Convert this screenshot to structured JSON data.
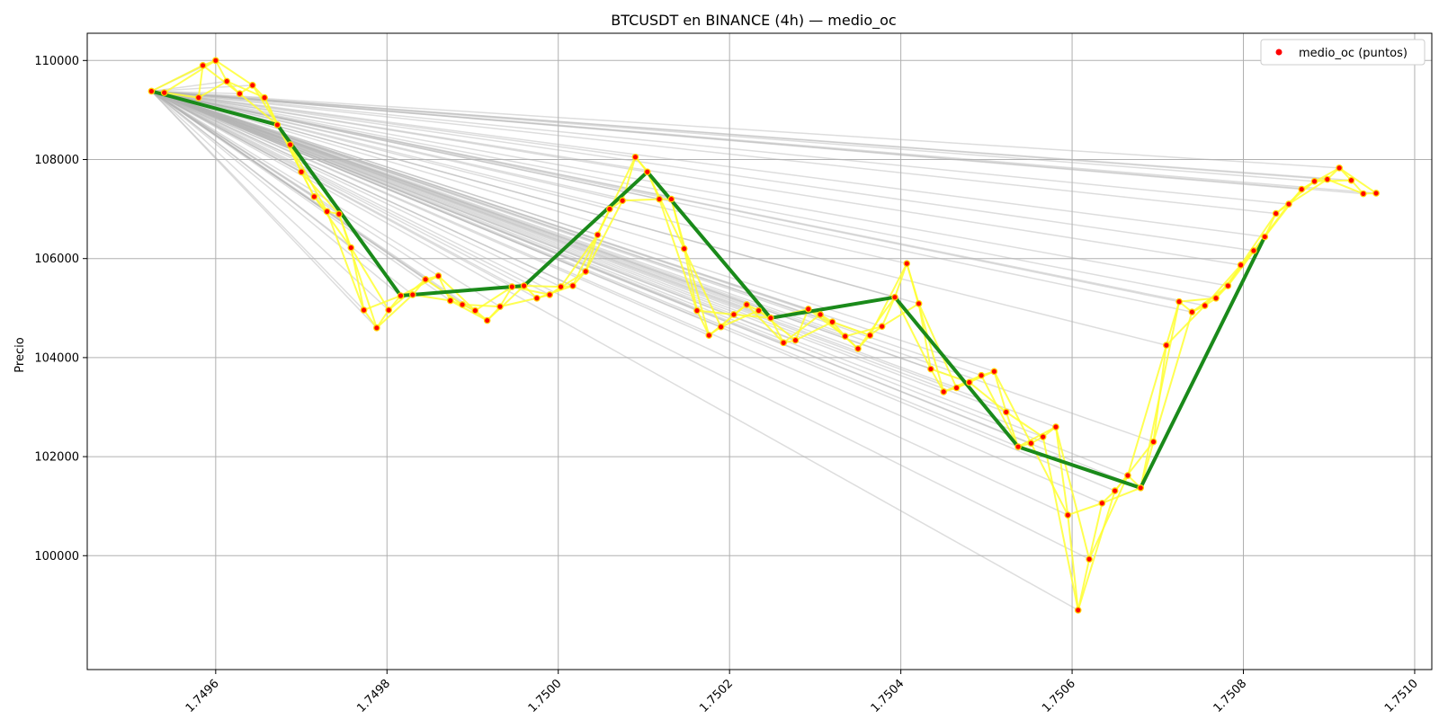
{
  "chart_data": {
    "type": "line",
    "title": "BTCUSDT en BINANCE (4h) — medio_oc",
    "xlabel": "",
    "ylabel": "Precio",
    "xlim": [
      1.74945,
      1.75102
    ],
    "ylim": [
      97700,
      110550
    ],
    "grid": true,
    "legend": {
      "position": "top-right",
      "entries": [
        "medio_oc (puntos)"
      ]
    },
    "x_ticks": [
      1.7496,
      1.7498,
      1.75,
      1.7502,
      1.7504,
      1.7506,
      1.7508,
      1.751
    ],
    "x_tick_labels": [
      "1.7496",
      "1.7498",
      "1.7500",
      "1.7502",
      "1.7504",
      "1.7506",
      "1.7508",
      "1.7510"
    ],
    "y_ticks": [
      100000,
      102000,
      104000,
      106000,
      108000,
      110000
    ],
    "y_tick_labels": [
      "100000",
      "102000",
      "104000",
      "106000",
      "108000",
      "110000"
    ],
    "colors": {
      "points": "#ff0000",
      "point_edge": "#ffd400",
      "path": "#ffff33",
      "trend": "#1a8a1a",
      "connectors": "#b4b4b4",
      "grid": "#b0b0b0"
    },
    "points": [
      {
        "x": 1.749525,
        "y": 109380
      },
      {
        "x": 1.74954,
        "y": 109350
      },
      {
        "x": 1.74958,
        "y": 109250
      },
      {
        "x": 1.749585,
        "y": 109900
      },
      {
        "x": 1.7496,
        "y": 110000
      },
      {
        "x": 1.749613,
        "y": 109580
      },
      {
        "x": 1.749628,
        "y": 109330
      },
      {
        "x": 1.749643,
        "y": 109500
      },
      {
        "x": 1.749657,
        "y": 109250
      },
      {
        "x": 1.749672,
        "y": 108700
      },
      {
        "x": 1.749687,
        "y": 108300
      },
      {
        "x": 1.7497,
        "y": 107750
      },
      {
        "x": 1.749715,
        "y": 107250
      },
      {
        "x": 1.74973,
        "y": 106950
      },
      {
        "x": 1.749744,
        "y": 106900
      },
      {
        "x": 1.749758,
        "y": 106220
      },
      {
        "x": 1.749773,
        "y": 104960
      },
      {
        "x": 1.749788,
        "y": 104600
      },
      {
        "x": 1.749802,
        "y": 104960
      },
      {
        "x": 1.749816,
        "y": 105250
      },
      {
        "x": 1.74983,
        "y": 105270
      },
      {
        "x": 1.749845,
        "y": 105580
      },
      {
        "x": 1.74986,
        "y": 105650
      },
      {
        "x": 1.749874,
        "y": 105150
      },
      {
        "x": 1.749888,
        "y": 105070
      },
      {
        "x": 1.749903,
        "y": 104950
      },
      {
        "x": 1.749917,
        "y": 104750
      },
      {
        "x": 1.749932,
        "y": 105030
      },
      {
        "x": 1.749946,
        "y": 105430
      },
      {
        "x": 1.74996,
        "y": 105450
      },
      {
        "x": 1.749975,
        "y": 105200
      },
      {
        "x": 1.74999,
        "y": 105270
      },
      {
        "x": 1.750003,
        "y": 105430
      },
      {
        "x": 1.750017,
        "y": 105450
      },
      {
        "x": 1.750032,
        "y": 105740
      },
      {
        "x": 1.750046,
        "y": 106480
      },
      {
        "x": 1.75006,
        "y": 107000
      },
      {
        "x": 1.750075,
        "y": 107170
      },
      {
        "x": 1.75009,
        "y": 108050
      },
      {
        "x": 1.750104,
        "y": 107750
      },
      {
        "x": 1.750118,
        "y": 107200
      },
      {
        "x": 1.750132,
        "y": 107200
      },
      {
        "x": 1.750147,
        "y": 106200
      },
      {
        "x": 1.750162,
        "y": 104950
      },
      {
        "x": 1.750176,
        "y": 104450
      },
      {
        "x": 1.75019,
        "y": 104620
      },
      {
        "x": 1.750205,
        "y": 104870
      },
      {
        "x": 1.75022,
        "y": 105070
      },
      {
        "x": 1.750234,
        "y": 104950
      },
      {
        "x": 1.750248,
        "y": 104800
      },
      {
        "x": 1.750263,
        "y": 104300
      },
      {
        "x": 1.750277,
        "y": 104350
      },
      {
        "x": 1.750292,
        "y": 104980
      },
      {
        "x": 1.750306,
        "y": 104870
      },
      {
        "x": 1.75032,
        "y": 104720
      },
      {
        "x": 1.750335,
        "y": 104430
      },
      {
        "x": 1.75035,
        "y": 104180
      },
      {
        "x": 1.750364,
        "y": 104450
      },
      {
        "x": 1.750378,
        "y": 104630
      },
      {
        "x": 1.750393,
        "y": 105220
      },
      {
        "x": 1.750407,
        "y": 105900
      },
      {
        "x": 1.750421,
        "y": 105090
      },
      {
        "x": 1.750435,
        "y": 103770
      },
      {
        "x": 1.75045,
        "y": 103310
      },
      {
        "x": 1.750465,
        "y": 103390
      },
      {
        "x": 1.75048,
        "y": 103500
      },
      {
        "x": 1.750494,
        "y": 103640
      },
      {
        "x": 1.750509,
        "y": 103720
      },
      {
        "x": 1.750523,
        "y": 102900
      },
      {
        "x": 1.750537,
        "y": 102200
      },
      {
        "x": 1.750552,
        "y": 102270
      },
      {
        "x": 1.750566,
        "y": 102400
      },
      {
        "x": 1.750581,
        "y": 102600
      },
      {
        "x": 1.750595,
        "y": 100820
      },
      {
        "x": 1.750607,
        "y": 98900
      },
      {
        "x": 1.75062,
        "y": 99930
      },
      {
        "x": 1.750635,
        "y": 101060
      },
      {
        "x": 1.75065,
        "y": 101310
      },
      {
        "x": 1.750665,
        "y": 101620
      },
      {
        "x": 1.75068,
        "y": 101370
      },
      {
        "x": 1.750695,
        "y": 102300
      },
      {
        "x": 1.75071,
        "y": 104250
      },
      {
        "x": 1.750725,
        "y": 105130
      },
      {
        "x": 1.75074,
        "y": 104920
      },
      {
        "x": 1.750755,
        "y": 105050
      },
      {
        "x": 1.750768,
        "y": 105200
      },
      {
        "x": 1.750782,
        "y": 105450
      },
      {
        "x": 1.750797,
        "y": 105870
      },
      {
        "x": 1.750812,
        "y": 106160
      },
      {
        "x": 1.750825,
        "y": 106440
      },
      {
        "x": 1.750838,
        "y": 106910
      },
      {
        "x": 1.750853,
        "y": 107100
      },
      {
        "x": 1.750868,
        "y": 107400
      },
      {
        "x": 1.750883,
        "y": 107560
      },
      {
        "x": 1.750898,
        "y": 107600
      },
      {
        "x": 1.750912,
        "y": 107830
      },
      {
        "x": 1.750926,
        "y": 107580
      },
      {
        "x": 1.75094,
        "y": 107310
      },
      {
        "x": 1.750955,
        "y": 107320
      }
    ],
    "series": [
      {
        "name": "",
        "role": "trend",
        "color": "#1a8a1a",
        "x": [
          1.749525,
          1.749672,
          1.749816,
          1.74996,
          1.750104,
          1.750248,
          1.750393,
          1.750537,
          1.75068,
          1.750825
        ],
        "y": [
          109380,
          108700,
          105250,
          105450,
          107750,
          104800,
          105220,
          102200,
          101370,
          106440
        ]
      }
    ]
  }
}
